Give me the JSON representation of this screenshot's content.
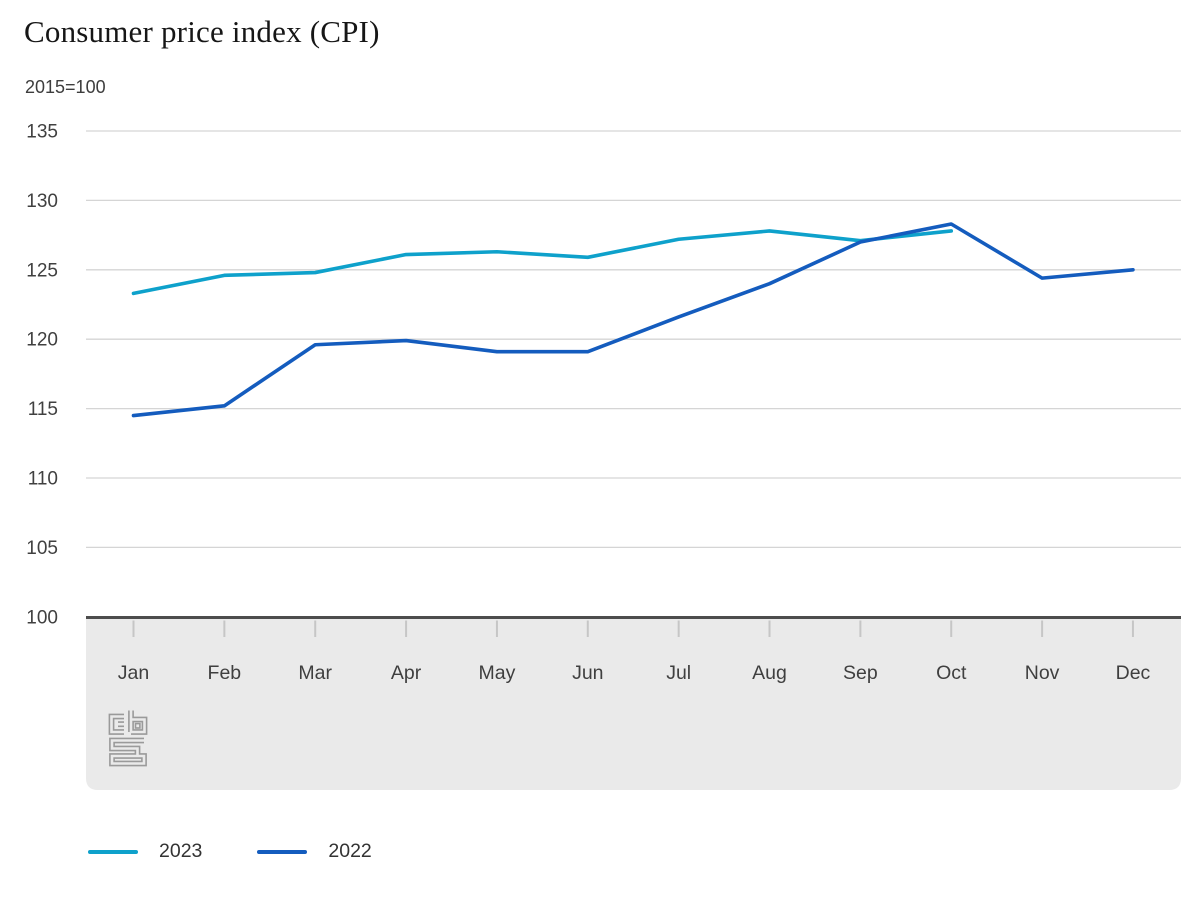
{
  "header": {
    "title": "Consumer price index (CPI)",
    "subtitle": "2015=100"
  },
  "chart_data": {
    "type": "line",
    "title": "Consumer price index (CPI)",
    "subtitle": "2015=100",
    "categories": [
      "Jan",
      "Feb",
      "Mar",
      "Apr",
      "May",
      "Jun",
      "Jul",
      "Aug",
      "Sep",
      "Oct",
      "Nov",
      "Dec"
    ],
    "series": [
      {
        "name": "2023",
        "color": "#0ea1cb",
        "values": [
          123.3,
          124.6,
          124.8,
          126.1,
          126.3,
          125.9,
          127.2,
          127.8,
          127.1,
          127.8
        ]
      },
      {
        "name": "2022",
        "color": "#145cbe",
        "values": [
          114.5,
          115.2,
          119.6,
          119.9,
          119.1,
          119.1,
          121.6,
          124.0,
          127.0,
          128.3,
          124.4,
          125.0
        ]
      }
    ],
    "ylim": [
      100,
      135
    ],
    "y_ticks": [
      100,
      105,
      110,
      115,
      120,
      125,
      130,
      135
    ],
    "xlabel": "",
    "ylabel": "2015=100",
    "grid": "horizontal gridlines",
    "legend_position": "bottom-left"
  },
  "icons": {
    "logo": "cbs-logo"
  },
  "colors": {
    "series_2023": "#0ea1cb",
    "series_2022": "#145cbe",
    "gridline": "#d5d5d5",
    "axis": "#4d4d4d",
    "tick_mark": "#c6c6c6",
    "band": "#eaeaea",
    "logo": "#9a9a9a",
    "axis_label": "#404040",
    "legend_text": "#333333",
    "title_text": "#161616"
  }
}
